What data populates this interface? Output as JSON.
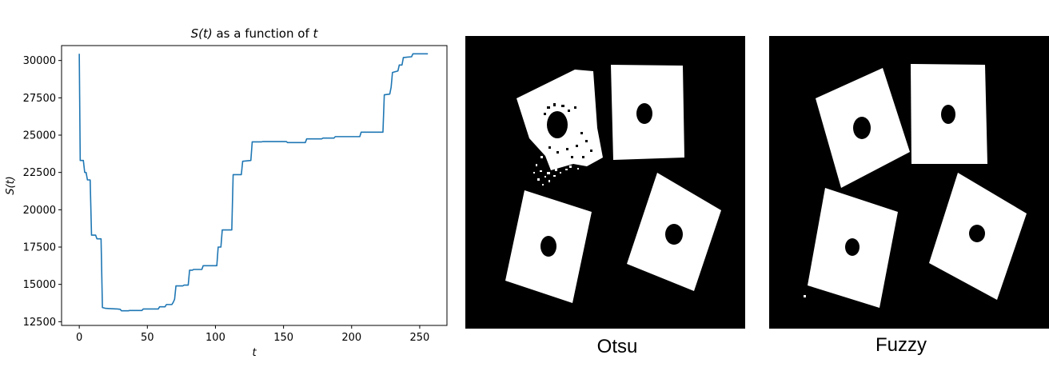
{
  "chart_data": {
    "type": "line",
    "title_math": "S(t)",
    "title_text": " as a function of ",
    "title_var": "t",
    "xlabel": "t",
    "ylabel": "S(t)",
    "xlim": [
      -13,
      270
    ],
    "ylim": [
      12250,
      31000
    ],
    "xticks": [
      0,
      50,
      100,
      150,
      200,
      250
    ],
    "yticks": [
      12500,
      15000,
      17500,
      20000,
      22500,
      25000,
      27500,
      30000
    ],
    "series": [
      {
        "name": "S(t)",
        "color": "#1f77b4",
        "points": [
          [
            0,
            30450
          ],
          [
            0.7,
            23300
          ],
          [
            3,
            23300
          ],
          [
            4,
            22500
          ],
          [
            5,
            22500
          ],
          [
            6,
            22000
          ],
          [
            8,
            22000
          ],
          [
            9,
            18300
          ],
          [
            12,
            18300
          ],
          [
            13,
            18050
          ],
          [
            16,
            18050
          ],
          [
            17,
            13450
          ],
          [
            19,
            13400
          ],
          [
            22,
            13380
          ],
          [
            28,
            13350
          ],
          [
            30,
            13330
          ],
          [
            31,
            13230
          ],
          [
            36,
            13230
          ],
          [
            37,
            13250
          ],
          [
            46,
            13250
          ],
          [
            47,
            13350
          ],
          [
            58,
            13350
          ],
          [
            59,
            13500
          ],
          [
            63,
            13500
          ],
          [
            64,
            13650
          ],
          [
            68,
            13650
          ],
          [
            69,
            13800
          ],
          [
            70,
            14000
          ],
          [
            71,
            14900
          ],
          [
            76,
            14900
          ],
          [
            77,
            14950
          ],
          [
            80,
            14950
          ],
          [
            81,
            15950
          ],
          [
            83,
            15950
          ],
          [
            84,
            16000
          ],
          [
            90,
            16000
          ],
          [
            91,
            16250
          ],
          [
            101,
            16250
          ],
          [
            102,
            17500
          ],
          [
            104,
            17500
          ],
          [
            105,
            18650
          ],
          [
            112,
            18650
          ],
          [
            113,
            22350
          ],
          [
            119,
            22350
          ],
          [
            120,
            23250
          ],
          [
            126,
            23300
          ],
          [
            127,
            24550
          ],
          [
            134,
            24550
          ],
          [
            135,
            24570
          ],
          [
            152,
            24570
          ],
          [
            153,
            24500
          ],
          [
            166,
            24500
          ],
          [
            167,
            24750
          ],
          [
            178,
            24750
          ],
          [
            179,
            24800
          ],
          [
            187,
            24800
          ],
          [
            188,
            24900
          ],
          [
            206,
            24900
          ],
          [
            207,
            25200
          ],
          [
            223,
            25200
          ],
          [
            224,
            27700
          ],
          [
            228,
            27750
          ],
          [
            229,
            28200
          ],
          [
            230,
            29200
          ],
          [
            234,
            29300
          ],
          [
            235,
            29700
          ],
          [
            237,
            29700
          ],
          [
            238,
            30200
          ],
          [
            244,
            30250
          ],
          [
            245,
            30450
          ],
          [
            256,
            30450
          ]
        ]
      }
    ]
  },
  "panels": [
    {
      "caption": "Otsu"
    },
    {
      "caption": "Fuzzy"
    }
  ]
}
